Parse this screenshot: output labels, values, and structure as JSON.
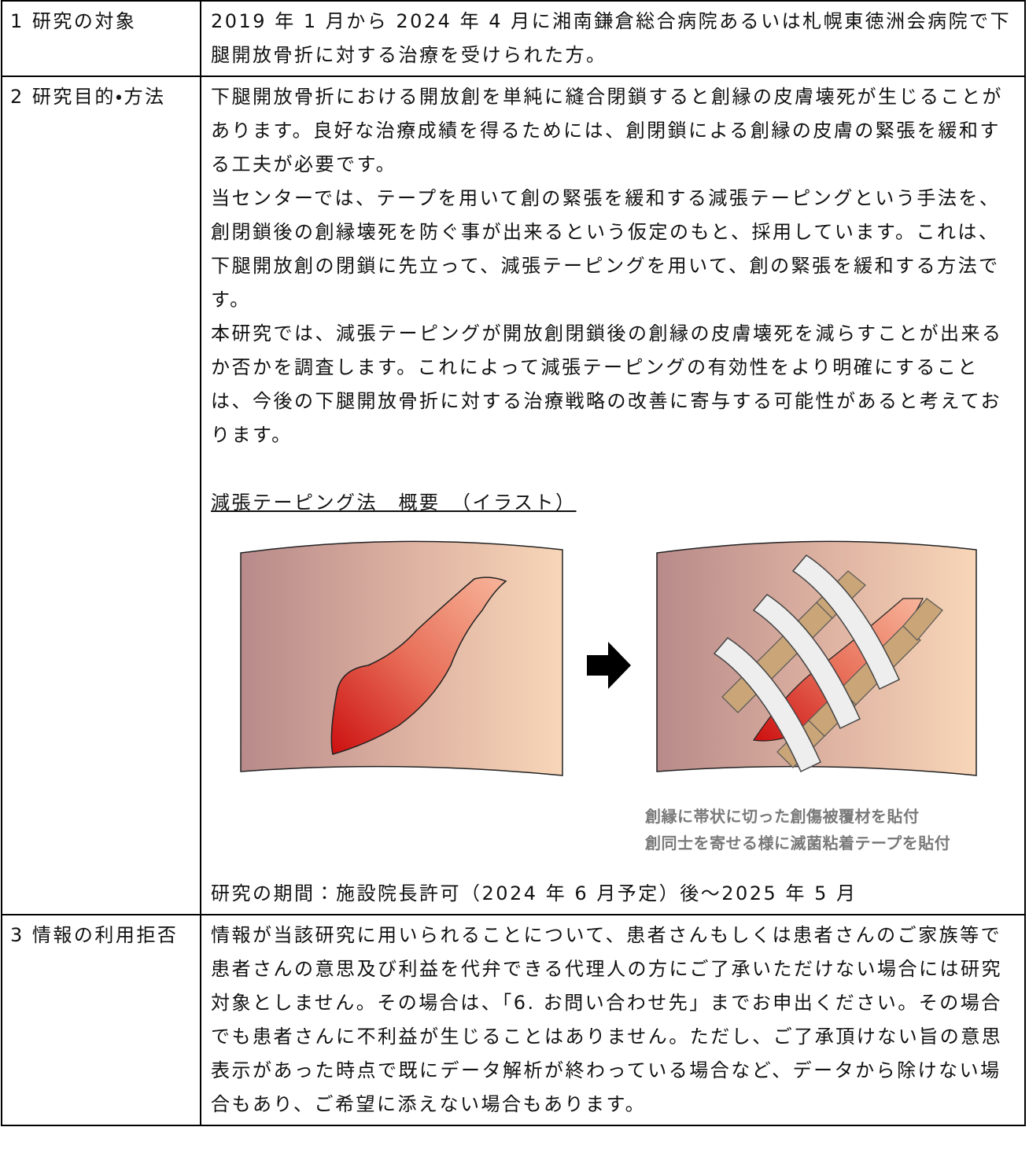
{
  "table": {
    "rows": [
      {
        "label": "1 研究の対象",
        "paragraphs": [
          "2019 年 1 月から 2024 年 4 月に湘南鎌倉総合病院あるいは札幌東徳洲会病院で下腿開放骨折に対する治療を受けられた方。"
        ]
      },
      {
        "label": "2 研究目的・方法",
        "paragraphs": [
          "下腿開放骨折における開放創を単純に縫合閉鎖すると創縁の皮膚壊死が生じることがあります。良好な治療成績を得るためには、創閉鎖による創縁の皮膚の緊張を緩和する工夫が必要です。",
          "当センターでは、テープを用いて創の緊張を緩和する減張テーピングという手法を、創閉鎖後の創縁壊死を防ぐ事が出来るという仮定のもと、採用しています。これは、下腿開放創の閉鎖に先立って、減張テーピングを用いて、創の緊張を緩和する方法です。",
          "本研究では、減張テーピングが開放創閉鎖後の創縁の皮膚壊死を減らすことが出来るか否かを調査します。これによって減張テーピングの有効性をより明確にすることは、今後の下腿開放骨折に対する治療戦略の改善に寄与する可能性があると考えております。"
        ],
        "figure_title": "減張テーピング法　概要　（イラスト）",
        "figure_caption": [
          "創縁に帯状に切った創傷被覆材を貼付",
          "創同士を寄せる様に滅菌粘着テープを貼付"
        ],
        "period": "研究の期間：施設院長許可（2024 年 6 月予定）後～2025 年 5 月"
      },
      {
        "label": "3 情報の利用拒否",
        "paragraphs": [
          "情報が当該研究に用いられることについて、患者さんもしくは患者さんのご家族等で患者さんの意思及び利益を代弁できる代理人の方にご了承いただけない場合には研究対象としません。その場合は、「6. お問い合わせ先」までお申出ください。その場合でも患者さんに不利益が生じることはありません。ただし、ご了承頂けない旨の意思表示があった時点で既にデータ解析が終わっている場合など、データから除けない場合もあり、ご希望に添えない場合もあります。"
        ]
      }
    ]
  }
}
